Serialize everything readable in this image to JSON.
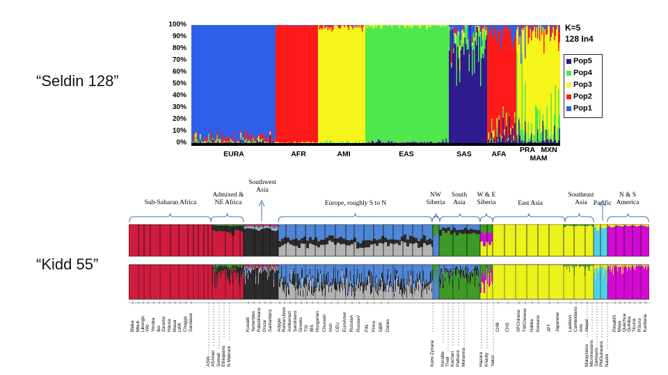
{
  "slide": {
    "label_seldin": "“Seldin 128”",
    "label_kidd": "“Kidd 55”"
  },
  "colors": {
    "pop1": "#2e5fe8",
    "pop2": "#ff1a1a",
    "pop3": "#f5f51a",
    "pop4": "#4ee84e",
    "pop5": "#2e1b8f",
    "kidd_red": "#d11c3d",
    "kidd_dark": "#2b2b2b",
    "kidd_gray": "#b3b3b3",
    "kidd_blue": "#4f86d6",
    "kidd_green": "#3e9a26",
    "kidd_yellow": "#ecf21a",
    "kidd_cyan": "#4fd0e8",
    "kidd_magenta": "#d40ad4"
  },
  "chart_data": [
    {
      "type": "bar",
      "subtype": "stacked-admixture",
      "title": "K=5",
      "subtitle": "128 In4",
      "y_ticks": [
        "100%",
        "90%",
        "80%",
        "70%",
        "60%",
        "50%",
        "40%",
        "30%",
        "20%",
        "10%",
        "0%"
      ],
      "ylim": [
        0,
        100
      ],
      "legend": [
        "Pop5",
        "Pop4",
        "Pop3",
        "Pop2",
        "Pop1"
      ],
      "legend_position": "right",
      "groups": [
        {
          "label": "EURA",
          "dominant": "Pop1",
          "share": 0.95
        },
        {
          "label": "AFR",
          "dominant": "Pop2",
          "share": 0.99
        },
        {
          "label": "AMI",
          "dominant": "Pop3",
          "share": 0.97
        },
        {
          "label": "EAS",
          "dominant": "Pop4",
          "share": 0.98
        },
        {
          "label": "SAS",
          "dominant": "Pop5",
          "share": 0.75
        },
        {
          "label": "AFA",
          "dominant": "Pop2",
          "share": 0.8
        },
        {
          "label": "PRA",
          "dominant": "Pop4",
          "share": 0.5
        },
        {
          "label": "MAM",
          "dominant": "Pop3",
          "share": 0.6
        },
        {
          "label": "MXN",
          "dominant": "Pop3",
          "share": 0.55
        }
      ]
    },
    {
      "type": "bar",
      "subtype": "stacked-admixture",
      "regions": [
        "Sub-Saharan Africa",
        "Admixed & NE Africa",
        "Southwest Asia",
        "Europe, roughly S to N",
        "NW Siberia",
        "South Asia",
        "W & E Siberia",
        "East Asia",
        "Southeast Asia",
        "Pacific",
        "N & S America"
      ],
      "populations": [
        "Biaka",
        "Mbuti",
        "Likongo",
        "YRI",
        "Yoruba",
        "Ibo",
        "Zaramo",
        "Hausa",
        "Masai",
        "LWK",
        "Chagga",
        "Sandawe",
        "ASW",
        "AfrAmer",
        "Somali",
        "Ethiopians",
        "N Makrani",
        "Kuwaiti",
        "Yemenites",
        "Palestinians",
        "Druze",
        "Samaritans",
        "Adygei",
        "RomanJews",
        "Ashkenazi",
        "Sardinians",
        "Greeks",
        "TSI",
        "IBS",
        "Hungarian",
        "Chuvash",
        "Irish",
        "CEU",
        "EuroAmer",
        "RussiaA",
        "RussiaV",
        "FIN",
        "Finns",
        "GBR",
        "Danes",
        "Komi Zyriane",
        "Keralite",
        "Thoti",
        "Kachari",
        "Pathans",
        "Mohanna",
        "Hazara",
        "Khanty",
        "Yakut",
        "CHB",
        "CHS",
        "SFChinese",
        "TWChinese",
        "Hakka",
        "Koreans",
        "JPT",
        "Japanese",
        "Laotians",
        "Cambodians",
        "Ami",
        "Atayal",
        "Malaysians",
        "Micronesians",
        "Samoans",
        "PNGuineans",
        "Nasioi",
        "PimaMX",
        "Maya",
        "Quechua",
        "Guihiba",
        "Ticuna",
        "RSurui",
        "Karitiana"
      ]
    }
  ]
}
